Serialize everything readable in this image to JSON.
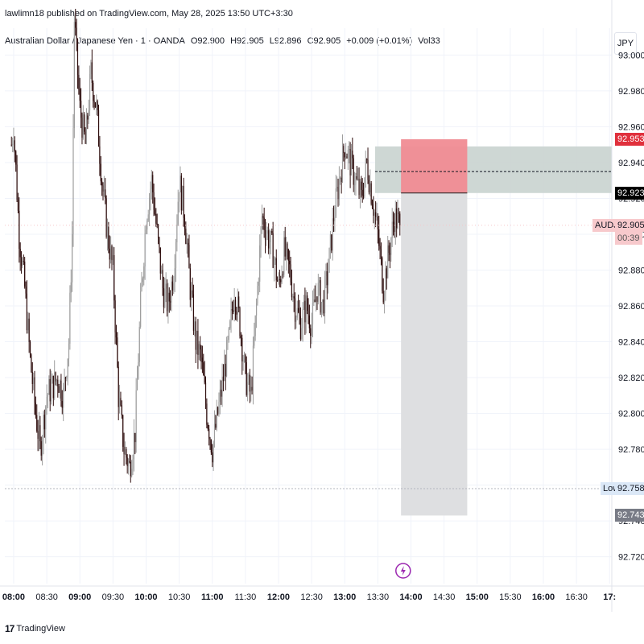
{
  "header": {
    "publish_line": "lawlimn18 published on TradingView.com, May 28, 2025 13:50 UTC+3:30",
    "symbol": "Australian Dollar / Japanese Yen · 1 · OANDA",
    "open": "O92.900",
    "high": "H92.905",
    "low": "L92.896",
    "close": "C92.905",
    "change": "+0.009 (+0.01%)",
    "volume": "Vol33"
  },
  "currency": "JPY",
  "footer": {
    "brand": "TradingView",
    "mark": "17"
  },
  "labels": {
    "target_price": "92.953",
    "entry_price": "92.923",
    "symbol_tag": "AUDJPY",
    "last_price": "92.905",
    "countdown": "00:39",
    "low_tag": "Low",
    "low_price": "92.758",
    "stop_price": "92.743"
  },
  "colors": {
    "candle_up": "#9e9e9e",
    "candle_down": "#2b0a0a",
    "target_zone": "#f08c93",
    "entry_band": "#c9d3cf",
    "stop_zone": "#dedfe1",
    "target_tag": "#e0303c",
    "entry_tag": "#000000",
    "last_price_tag": "#f7c9cc",
    "stop_tag": "#787b86",
    "low_tag": "#dbe8f7",
    "event_icon": "#9c27b0"
  },
  "icons": {
    "event": "lightning-icon"
  },
  "chart_data": {
    "type": "candlestick",
    "symbol": "AUDJPY",
    "interval": "1",
    "y_axis": {
      "ticks": [
        "93.000",
        "92.980",
        "92.960",
        "92.940",
        "92.920",
        "92.900",
        "92.880",
        "92.860",
        "92.840",
        "92.820",
        "92.800",
        "92.780",
        "92.760",
        "92.740",
        "92.720"
      ],
      "range": [
        92.705,
        93.015
      ]
    },
    "x_axis": {
      "ticks": [
        "08:00",
        "08:30",
        "09:00",
        "09:30",
        "10:00",
        "10:30",
        "11:00",
        "11:30",
        "12:00",
        "12:30",
        "13:00",
        "13:30",
        "14:00",
        "14:30",
        "15:00",
        "15:30",
        "16:00",
        "16:30",
        "17:"
      ],
      "bold_ticks": [
        "08:00",
        "09:00",
        "10:00",
        "11:00",
        "12:00",
        "13:00",
        "14:00",
        "15:00",
        "16:00",
        "17:"
      ]
    },
    "price_path": [
      [
        "07:58",
        92.95
      ],
      [
        "08:00",
        92.96
      ],
      [
        "08:05",
        92.9
      ],
      [
        "08:10",
        92.87
      ],
      [
        "08:15",
        92.83
      ],
      [
        "08:20",
        92.8
      ],
      [
        "08:24",
        92.78
      ],
      [
        "08:30",
        92.81
      ],
      [
        "08:40",
        92.82
      ],
      [
        "08:45",
        92.81
      ],
      [
        "08:50",
        92.84
      ],
      [
        "08:53",
        92.9
      ],
      [
        "08:55",
        93.02
      ],
      [
        "09:00",
        92.97
      ],
      [
        "09:05",
        92.95
      ],
      [
        "09:10",
        92.99
      ],
      [
        "09:15",
        92.97
      ],
      [
        "09:20",
        92.93
      ],
      [
        "09:25",
        92.9
      ],
      [
        "09:30",
        92.88
      ],
      [
        "09:35",
        92.81
      ],
      [
        "09:40",
        92.78
      ],
      [
        "09:45",
        92.77
      ],
      [
        "09:50",
        92.79
      ],
      [
        "09:55",
        92.86
      ],
      [
        "10:00",
        92.91
      ],
      [
        "10:05",
        92.93
      ],
      [
        "10:10",
        92.9
      ],
      [
        "10:15",
        92.87
      ],
      [
        "10:20",
        92.86
      ],
      [
        "10:25",
        92.88
      ],
      [
        "10:30",
        92.93
      ],
      [
        "10:35",
        92.91
      ],
      [
        "10:40",
        92.87
      ],
      [
        "10:45",
        92.84
      ],
      [
        "10:50",
        92.83
      ],
      [
        "10:55",
        92.8
      ],
      [
        "11:00",
        92.78
      ],
      [
        "11:05",
        92.8
      ],
      [
        "11:10",
        92.82
      ],
      [
        "11:15",
        92.84
      ],
      [
        "11:20",
        92.87
      ],
      [
        "11:25",
        92.85
      ],
      [
        "11:30",
        92.82
      ],
      [
        "11:35",
        92.81
      ],
      [
        "11:40",
        92.86
      ],
      [
        "11:45",
        92.91
      ],
      [
        "11:50",
        92.9
      ],
      [
        "11:55",
        92.89
      ],
      [
        "12:00",
        92.87
      ],
      [
        "12:05",
        92.89
      ],
      [
        "12:10",
        92.88
      ],
      [
        "12:15",
        92.86
      ],
      [
        "12:20",
        92.85
      ],
      [
        "12:25",
        92.86
      ],
      [
        "12:30",
        92.85
      ],
      [
        "12:35",
        92.87
      ],
      [
        "12:40",
        92.86
      ],
      [
        "12:45",
        92.88
      ],
      [
        "12:50",
        92.91
      ],
      [
        "12:55",
        92.93
      ],
      [
        "13:00",
        92.95
      ],
      [
        "13:05",
        92.94
      ],
      [
        "13:10",
        92.93
      ],
      [
        "13:15",
        92.92
      ],
      [
        "13:20",
        92.94
      ],
      [
        "13:25",
        92.92
      ],
      [
        "13:30",
        92.9
      ],
      [
        "13:35",
        92.87
      ],
      [
        "13:40",
        92.89
      ],
      [
        "13:45",
        92.91
      ],
      [
        "13:50",
        92.905
      ]
    ],
    "annotations": {
      "session_low": 92.758,
      "last_price": 92.905,
      "position": {
        "kind": "short",
        "start": "13:51",
        "end": "14:51",
        "target_upper": 92.953,
        "entry": 92.923,
        "stop_lower": 92.743,
        "band_upper": 92.949
      },
      "dashed_level": 92.935
    }
  }
}
